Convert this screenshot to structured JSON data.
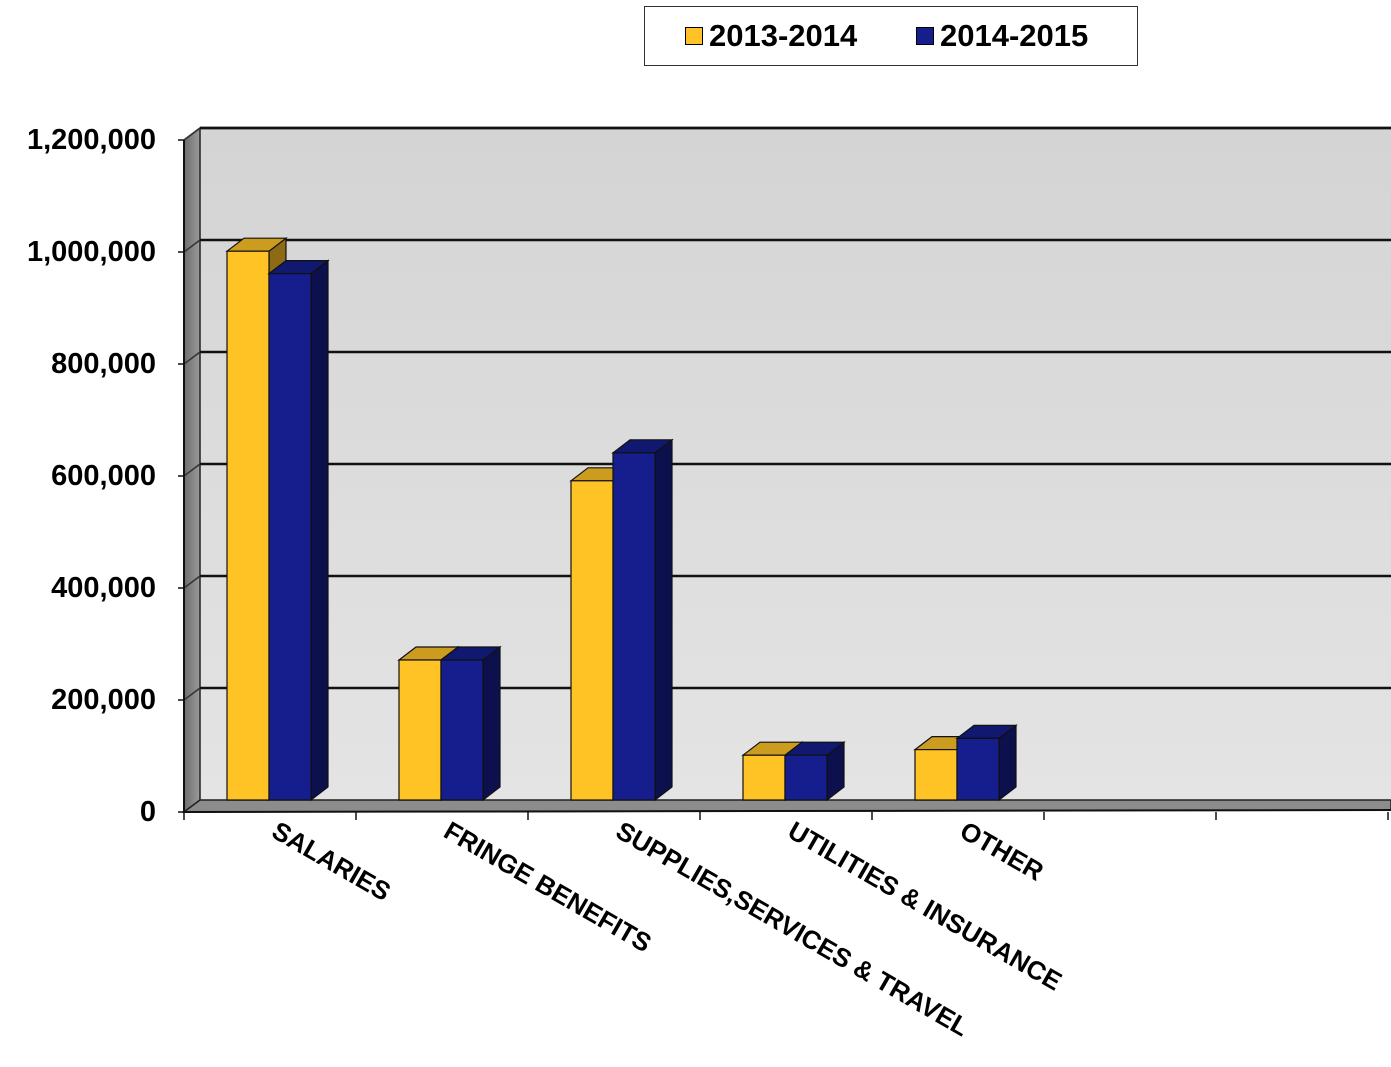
{
  "chart_data": {
    "type": "bar",
    "categories": [
      "SALARIES",
      "FRINGE BENEFITS",
      "SUPPLIES,SERVICES & TRAVEL",
      "UTILITIES & INSURANCE",
      "OTHER"
    ],
    "series": [
      {
        "name": "2013-2014",
        "values": [
          980000,
          250000,
          570000,
          80000,
          90000
        ],
        "color": "#FFC325"
      },
      {
        "name": "2014-2015",
        "values": [
          940000,
          250000,
          620000,
          80000,
          110000
        ],
        "color": "#151E8C"
      }
    ],
    "ylim": [
      0,
      1200000
    ],
    "y_ticks": [
      0,
      200000,
      400000,
      600000,
      800000,
      1000000,
      1200000
    ],
    "y_tick_labels": [
      "0",
      "200,000",
      "400,000",
      "600,000",
      "800,000",
      "1,000,000",
      "1,200,000"
    ],
    "title": "",
    "xlabel": "",
    "ylabel": "",
    "legend_position": "top",
    "grid": true,
    "style": "3d-clustered-column"
  }
}
